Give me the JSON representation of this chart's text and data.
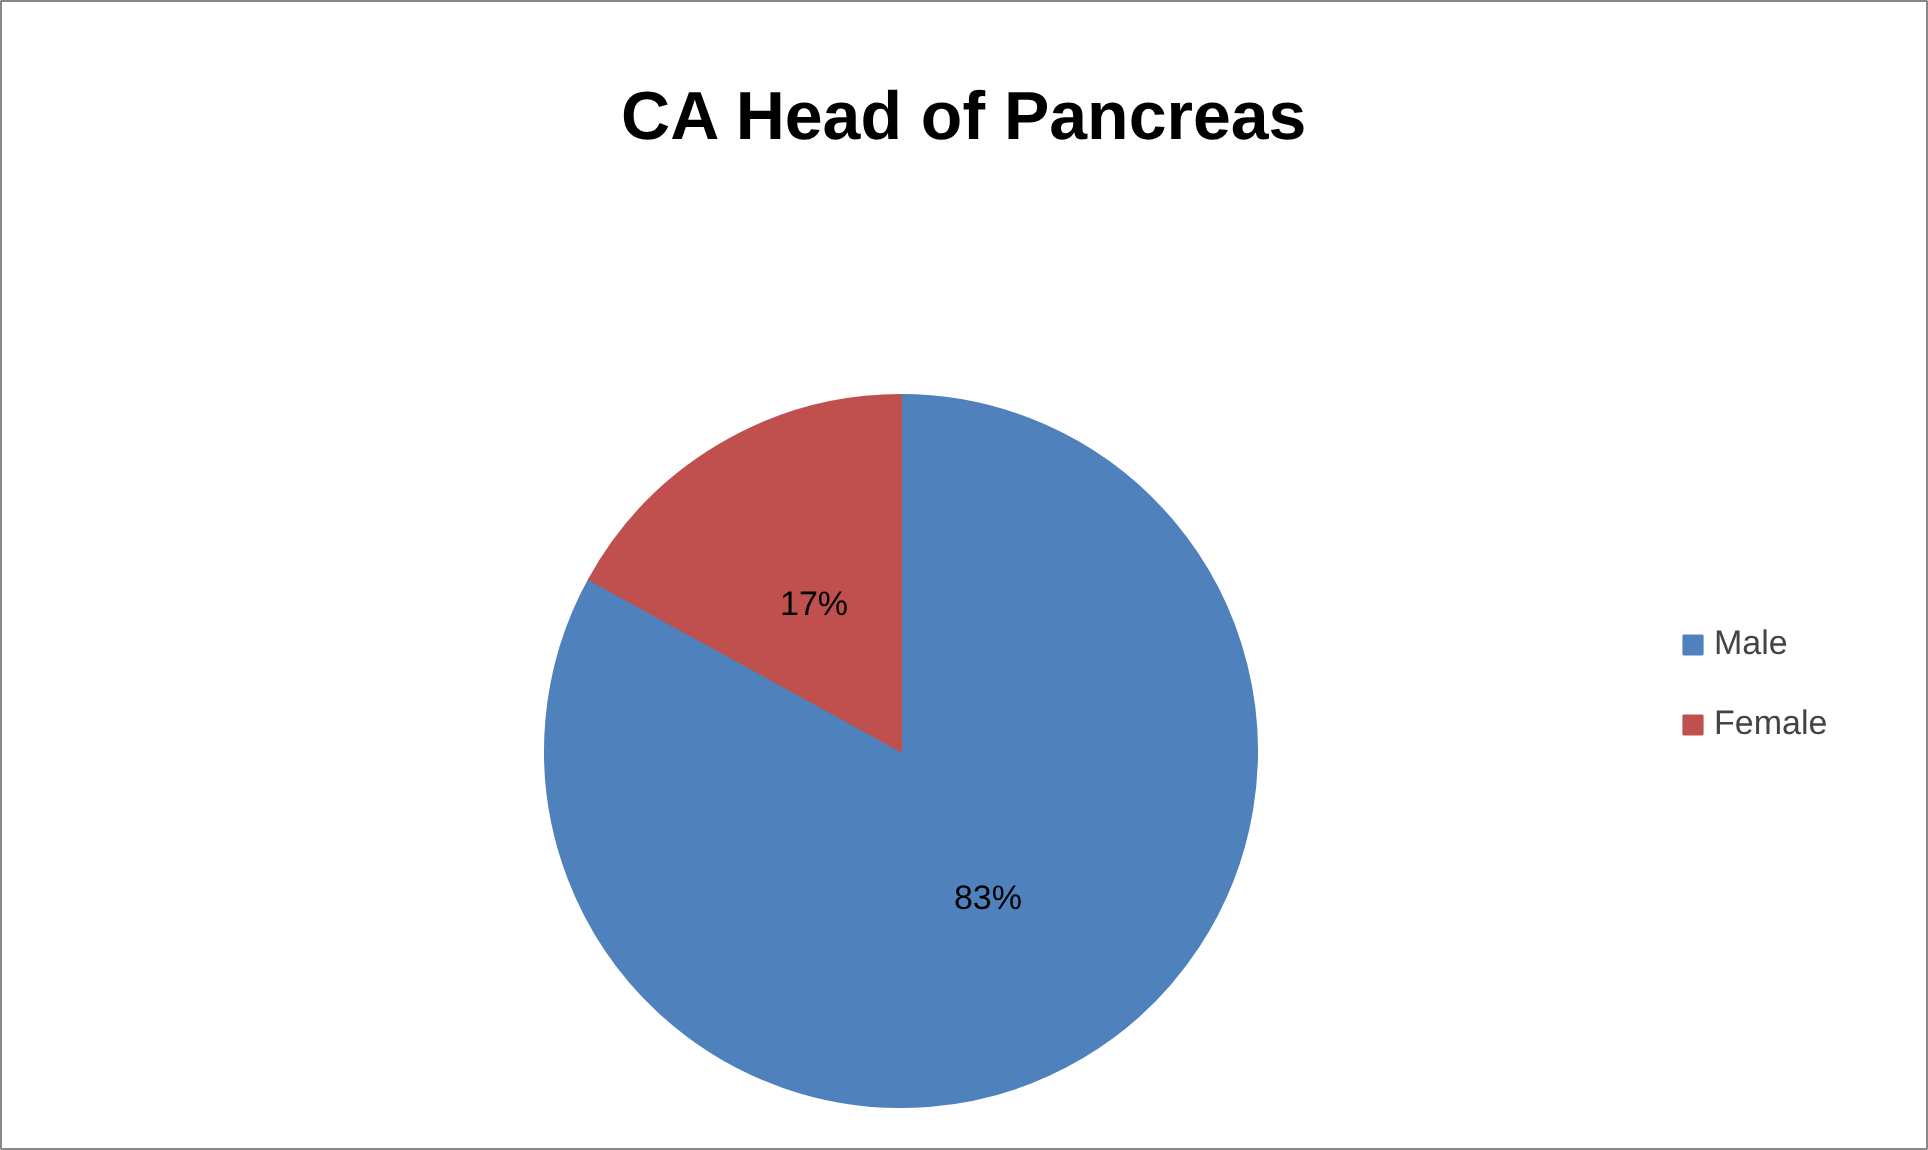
{
  "chart_data": {
    "type": "pie",
    "title": "CA Head of Pancreas",
    "categories": [
      "Male",
      "Female"
    ],
    "values": [
      83,
      17
    ],
    "colors": [
      "#4f81bd",
      "#c0504d"
    ],
    "value_labels": [
      "83%",
      "17%"
    ],
    "legend": "right"
  }
}
